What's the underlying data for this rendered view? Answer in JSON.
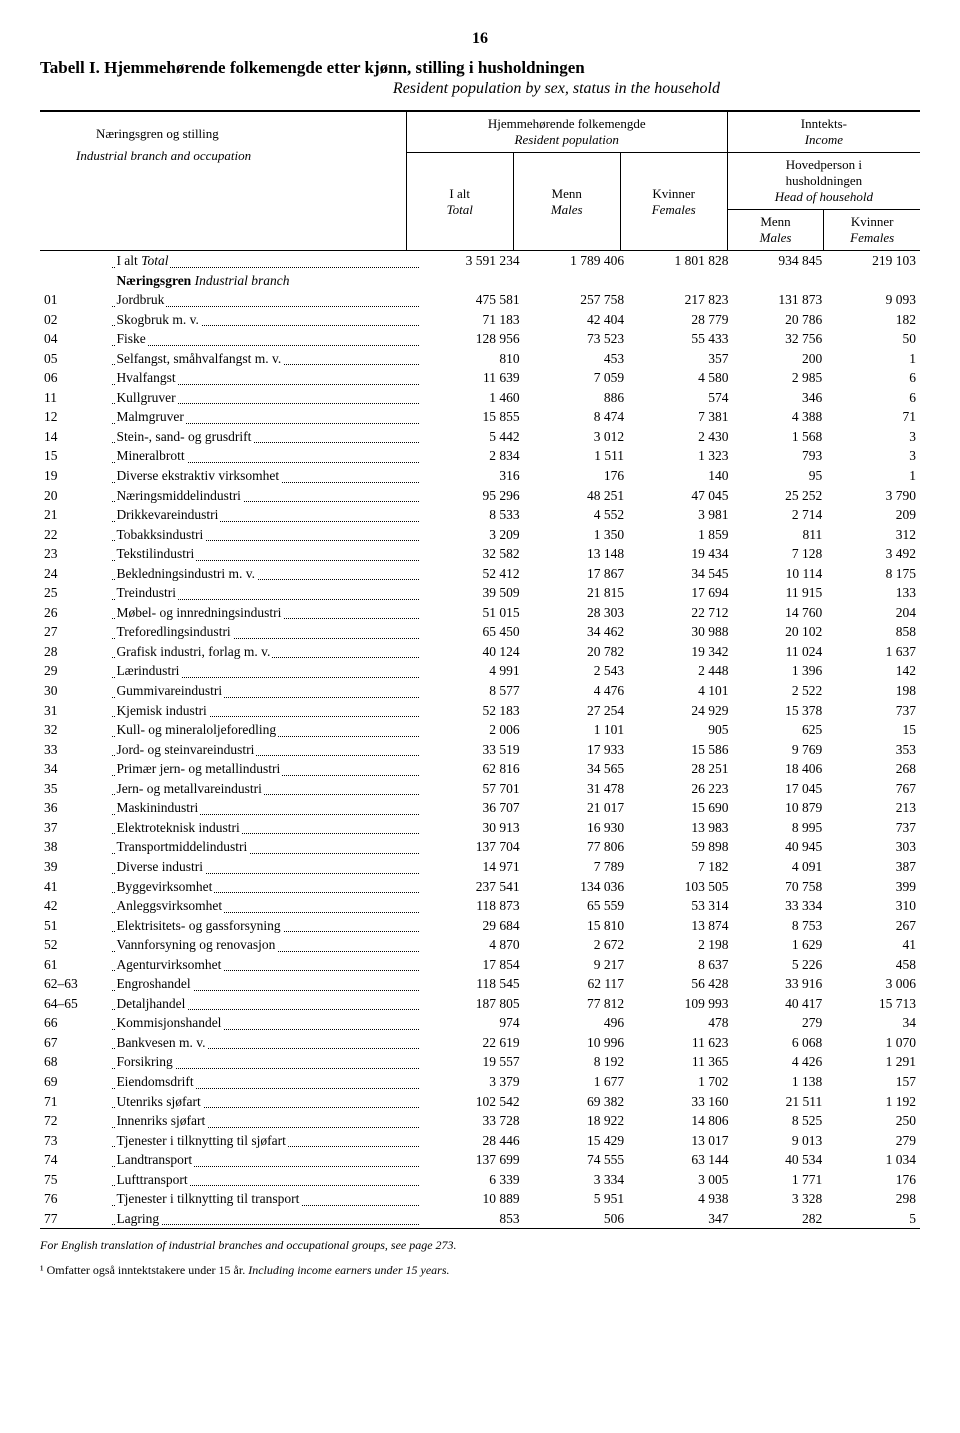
{
  "page_number": "16",
  "title_prefix": "Tabell I. ",
  "title_main": "Hjemmehørende folkemengde etter kjønn, stilling i husholdningen",
  "subtitle": "Resident population by sex, status in the household",
  "header": {
    "left_line1": "Næringsgren og stilling",
    "left_line2": "Industrial branch and occupation",
    "group1_line1": "Hjemmehørende folkemengde",
    "group1_line2": "Resident population",
    "group2_line1": "Inntekts-",
    "group2_line2": "Income",
    "col_total_1": "I alt",
    "col_total_2": "Total",
    "col_menn_1": "Menn",
    "col_menn_2": "Males",
    "col_kvinner_1": "Kvinner",
    "col_kvinner_2": "Females",
    "hp_line1": "Hovedperson i",
    "hp_line2": "husholdningen",
    "hp_line3": "Head of household",
    "hp_menn_1": "Menn",
    "hp_menn_2": "Males",
    "hp_kvinner_1": "Kvinner",
    "hp_kvinner_2": "Females"
  },
  "total_row": {
    "label": "I alt Total",
    "c1": "3 591 234",
    "c2": "1 789 406",
    "c3": "1 801 828",
    "c4": "934 845",
    "c5": "219 103"
  },
  "section_label": "Næringsgren Industrial branch",
  "rows": [
    {
      "code": "01",
      "label": "Jordbruk",
      "c1": "475 581",
      "c2": "257 758",
      "c3": "217 823",
      "c4": "131 873",
      "c5": "9 093"
    },
    {
      "code": "02",
      "label": "Skogbruk m. v.",
      "c1": "71 183",
      "c2": "42 404",
      "c3": "28 779",
      "c4": "20 786",
      "c5": "182"
    },
    {
      "code": "04",
      "label": "Fiske",
      "c1": "128 956",
      "c2": "73 523",
      "c3": "55 433",
      "c4": "32 756",
      "c5": "50"
    },
    {
      "code": "05",
      "label": "Selfangst, småhvalfangst m. v.",
      "c1": "810",
      "c2": "453",
      "c3": "357",
      "c4": "200",
      "c5": "1"
    },
    {
      "code": "06",
      "label": "Hvalfangst",
      "c1": "11 639",
      "c2": "7 059",
      "c3": "4 580",
      "c4": "2 985",
      "c5": "6"
    },
    {
      "code": "11",
      "label": "Kullgruver",
      "c1": "1 460",
      "c2": "886",
      "c3": "574",
      "c4": "346",
      "c5": "6"
    },
    {
      "code": "12",
      "label": "Malmgruver",
      "c1": "15 855",
      "c2": "8 474",
      "c3": "7 381",
      "c4": "4 388",
      "c5": "71"
    },
    {
      "code": "14",
      "label": "Stein-, sand- og grusdrift",
      "c1": "5 442",
      "c2": "3 012",
      "c3": "2 430",
      "c4": "1 568",
      "c5": "3"
    },
    {
      "code": "15",
      "label": "Mineralbrott",
      "c1": "2 834",
      "c2": "1 511",
      "c3": "1 323",
      "c4": "793",
      "c5": "3"
    },
    {
      "code": "19",
      "label": "Diverse ekstraktiv virksomhet",
      "c1": "316",
      "c2": "176",
      "c3": "140",
      "c4": "95",
      "c5": "1"
    },
    {
      "code": "20",
      "label": "Næringsmiddelindustri",
      "c1": "95 296",
      "c2": "48 251",
      "c3": "47 045",
      "c4": "25 252",
      "c5": "3 790"
    },
    {
      "code": "21",
      "label": "Drikkevareindustri",
      "c1": "8 533",
      "c2": "4 552",
      "c3": "3 981",
      "c4": "2 714",
      "c5": "209"
    },
    {
      "code": "22",
      "label": "Tobakksindustri",
      "c1": "3 209",
      "c2": "1 350",
      "c3": "1 859",
      "c4": "811",
      "c5": "312"
    },
    {
      "code": "23",
      "label": "Tekstilindustri",
      "c1": "32 582",
      "c2": "13 148",
      "c3": "19 434",
      "c4": "7 128",
      "c5": "3 492"
    },
    {
      "code": "24",
      "label": "Bekledningsindustri m. v.",
      "c1": "52 412",
      "c2": "17 867",
      "c3": "34 545",
      "c4": "10 114",
      "c5": "8 175"
    },
    {
      "code": "25",
      "label": "Treindustri",
      "c1": "39 509",
      "c2": "21 815",
      "c3": "17 694",
      "c4": "11 915",
      "c5": "133"
    },
    {
      "code": "26",
      "label": "Møbel- og innredningsindustri",
      "c1": "51 015",
      "c2": "28 303",
      "c3": "22 712",
      "c4": "14 760",
      "c5": "204"
    },
    {
      "code": "27",
      "label": "Treforedlingsindustri",
      "c1": "65 450",
      "c2": "34 462",
      "c3": "30 988",
      "c4": "20 102",
      "c5": "858"
    },
    {
      "code": "28",
      "label": "Grafisk industri, forlag m. v.",
      "c1": "40 124",
      "c2": "20 782",
      "c3": "19 342",
      "c4": "11 024",
      "c5": "1 637"
    },
    {
      "code": "29",
      "label": "Lærindustri",
      "c1": "4 991",
      "c2": "2 543",
      "c3": "2 448",
      "c4": "1 396",
      "c5": "142"
    },
    {
      "code": "30",
      "label": "Gummivareindustri",
      "c1": "8 577",
      "c2": "4 476",
      "c3": "4 101",
      "c4": "2 522",
      "c5": "198"
    },
    {
      "code": "31",
      "label": "Kjemisk industri",
      "c1": "52 183",
      "c2": "27 254",
      "c3": "24 929",
      "c4": "15 378",
      "c5": "737"
    },
    {
      "code": "32",
      "label": "Kull- og mineraloljeforedling",
      "c1": "2 006",
      "c2": "1 101",
      "c3": "905",
      "c4": "625",
      "c5": "15"
    },
    {
      "code": "33",
      "label": "Jord- og steinvareindustri",
      "c1": "33 519",
      "c2": "17 933",
      "c3": "15 586",
      "c4": "9 769",
      "c5": "353"
    },
    {
      "code": "34",
      "label": "Primær jern- og metallindustri",
      "c1": "62 816",
      "c2": "34 565",
      "c3": "28 251",
      "c4": "18 406",
      "c5": "268"
    },
    {
      "code": "35",
      "label": "Jern- og metallvareindustri",
      "c1": "57 701",
      "c2": "31 478",
      "c3": "26 223",
      "c4": "17 045",
      "c5": "767"
    },
    {
      "code": "36",
      "label": "Maskinindustri",
      "c1": "36 707",
      "c2": "21 017",
      "c3": "15 690",
      "c4": "10 879",
      "c5": "213"
    },
    {
      "code": "37",
      "label": "Elektroteknisk industri",
      "c1": "30 913",
      "c2": "16 930",
      "c3": "13 983",
      "c4": "8 995",
      "c5": "737"
    },
    {
      "code": "38",
      "label": "Transportmiddelindustri",
      "c1": "137 704",
      "c2": "77 806",
      "c3": "59 898",
      "c4": "40 945",
      "c5": "303"
    },
    {
      "code": "39",
      "label": "Diverse industri",
      "c1": "14 971",
      "c2": "7 789",
      "c3": "7 182",
      "c4": "4 091",
      "c5": "387"
    },
    {
      "code": "41",
      "label": "Byggevirksomhet",
      "c1": "237 541",
      "c2": "134 036",
      "c3": "103 505",
      "c4": "70 758",
      "c5": "399"
    },
    {
      "code": "42",
      "label": "Anleggsvirksomhet",
      "c1": "118 873",
      "c2": "65 559",
      "c3": "53 314",
      "c4": "33 334",
      "c5": "310"
    },
    {
      "code": "51",
      "label": "Elektrisitets- og gassforsyning",
      "c1": "29 684",
      "c2": "15 810",
      "c3": "13 874",
      "c4": "8 753",
      "c5": "267"
    },
    {
      "code": "52",
      "label": "Vannforsyning og renovasjon",
      "c1": "4 870",
      "c2": "2 672",
      "c3": "2 198",
      "c4": "1 629",
      "c5": "41"
    },
    {
      "code": "61",
      "label": "Agenturvirksomhet",
      "c1": "17 854",
      "c2": "9 217",
      "c3": "8 637",
      "c4": "5 226",
      "c5": "458"
    },
    {
      "code": "62–63",
      "label": "Engroshandel",
      "c1": "118 545",
      "c2": "62 117",
      "c3": "56 428",
      "c4": "33 916",
      "c5": "3 006"
    },
    {
      "code": "64–65",
      "label": "Detaljhandel",
      "c1": "187 805",
      "c2": "77 812",
      "c3": "109 993",
      "c4": "40 417",
      "c5": "15 713"
    },
    {
      "code": "66",
      "label": "Kommisjonshandel",
      "c1": "974",
      "c2": "496",
      "c3": "478",
      "c4": "279",
      "c5": "34"
    },
    {
      "code": "67",
      "label": "Bankvesen m. v.",
      "c1": "22 619",
      "c2": "10 996",
      "c3": "11 623",
      "c4": "6 068",
      "c5": "1 070"
    },
    {
      "code": "68",
      "label": "Forsikring",
      "c1": "19 557",
      "c2": "8 192",
      "c3": "11 365",
      "c4": "4 426",
      "c5": "1 291"
    },
    {
      "code": "69",
      "label": "Eiendomsdrift",
      "c1": "3 379",
      "c2": "1 677",
      "c3": "1 702",
      "c4": "1 138",
      "c5": "157"
    },
    {
      "code": "71",
      "label": "Utenriks sjøfart",
      "c1": "102 542",
      "c2": "69 382",
      "c3": "33 160",
      "c4": "21 511",
      "c5": "1 192"
    },
    {
      "code": "72",
      "label": "Innenriks sjøfart",
      "c1": "33 728",
      "c2": "18 922",
      "c3": "14 806",
      "c4": "8 525",
      "c5": "250"
    },
    {
      "code": "73",
      "label": "Tjenester i tilknytting til sjøfart",
      "c1": "28 446",
      "c2": "15 429",
      "c3": "13 017",
      "c4": "9 013",
      "c5": "279"
    },
    {
      "code": "74",
      "label": "Landtransport",
      "c1": "137 699",
      "c2": "74 555",
      "c3": "63 144",
      "c4": "40 534",
      "c5": "1 034"
    },
    {
      "code": "75",
      "label": "Lufttransport",
      "c1": "6 339",
      "c2": "3 334",
      "c3": "3 005",
      "c4": "1 771",
      "c5": "176"
    },
    {
      "code": "76",
      "label": "Tjenester i tilknytting til transport",
      "c1": "10 889",
      "c2": "5 951",
      "c3": "4 938",
      "c4": "3 328",
      "c5": "298"
    },
    {
      "code": "77",
      "label": "Lagring",
      "c1": "853",
      "c2": "506",
      "c3": "347",
      "c4": "282",
      "c5": "5"
    }
  ],
  "footnote1_a": "For English translation of industrial branches and occupational groups, see page 273.",
  "footnote2_prefix": "¹ Omfatter også inntektstakere under 15 år. ",
  "footnote2_italic": "Including income earners under 15 years."
}
